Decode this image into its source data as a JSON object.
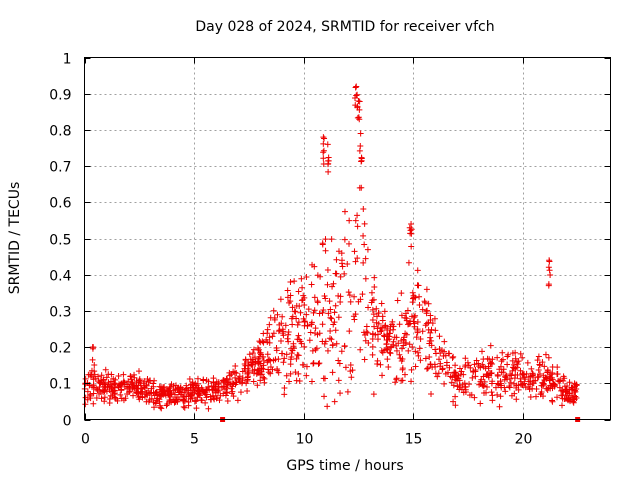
{
  "chart_data": {
    "type": "scatter",
    "title": "Day 028 of 2024, SRMTID for receiver vfch",
    "xlabel": "GPS time / hours",
    "ylabel": "SRMTID / TECUs",
    "xlim": [
      0,
      24
    ],
    "ylim": [
      0,
      1
    ],
    "xticks": [
      0,
      5,
      10,
      15,
      20
    ],
    "xtick_labels": [
      "0",
      "5",
      "10",
      "15",
      "20"
    ],
    "yticks": [
      0,
      0.1,
      0.2,
      0.3,
      0.4,
      0.5,
      0.6,
      0.7,
      0.8,
      0.9,
      1
    ],
    "ytick_labels": [
      "0",
      "0.1",
      "0.2",
      "0.3",
      "0.4",
      "0.5",
      "0.6",
      "0.7",
      "0.8",
      "0.9",
      "1"
    ],
    "grid": true,
    "marker": "plus",
    "color": "#ee0000",
    "series": [
      {
        "name": "SRMTID",
        "description": "Scatter of SRMTID values; envelope sampled every 0.5 h",
        "envelope": {
          "x": [
            0,
            0.5,
            1,
            1.5,
            2,
            2.5,
            3,
            3.5,
            4,
            4.5,
            5,
            5.5,
            6,
            6.5,
            7,
            7.5,
            8,
            8.5,
            9,
            9.5,
            10,
            10.5,
            11,
            11.5,
            12,
            12.5,
            13,
            13.5,
            14,
            14.5,
            15,
            15.5,
            16,
            16.5,
            17,
            17.5,
            18,
            18.5,
            19,
            19.5,
            20,
            20.5,
            21,
            21.5,
            22,
            22.5
          ],
          "median": [
            0.08,
            0.09,
            0.09,
            0.09,
            0.1,
            0.09,
            0.07,
            0.07,
            0.07,
            0.07,
            0.07,
            0.08,
            0.07,
            0.09,
            0.11,
            0.14,
            0.16,
            0.18,
            0.22,
            0.24,
            0.25,
            0.28,
            0.3,
            0.28,
            0.35,
            0.4,
            0.3,
            0.22,
            0.2,
            0.22,
            0.3,
            0.28,
            0.2,
            0.14,
            0.1,
            0.11,
            0.13,
            0.14,
            0.12,
            0.13,
            0.12,
            0.11,
            0.11,
            0.1,
            0.08,
            0.07
          ],
          "spread": [
            0.04,
            0.05,
            0.05,
            0.05,
            0.05,
            0.04,
            0.04,
            0.04,
            0.04,
            0.04,
            0.04,
            0.04,
            0.04,
            0.05,
            0.05,
            0.05,
            0.07,
            0.12,
            0.15,
            0.16,
            0.18,
            0.18,
            0.25,
            0.2,
            0.28,
            0.3,
            0.2,
            0.12,
            0.08,
            0.14,
            0.18,
            0.15,
            0.1,
            0.08,
            0.05,
            0.06,
            0.08,
            0.08,
            0.07,
            0.08,
            0.06,
            0.06,
            0.07,
            0.05,
            0.04,
            0.04
          ]
        },
        "peaks": [
          {
            "x": 0.4,
            "y": 0.2
          },
          {
            "x": 10.9,
            "y": 0.78
          },
          {
            "x": 11.1,
            "y": 0.76
          },
          {
            "x": 12.4,
            "y": 0.92
          },
          {
            "x": 12.5,
            "y": 0.88
          },
          {
            "x": 12.6,
            "y": 0.79
          },
          {
            "x": 14.9,
            "y": 0.54
          },
          {
            "x": 21.2,
            "y": 0.44
          }
        ]
      }
    ],
    "markers_on_axis": [
      {
        "x": 6.3,
        "y": 0
      },
      {
        "x": 22.5,
        "y": 0
      }
    ]
  }
}
